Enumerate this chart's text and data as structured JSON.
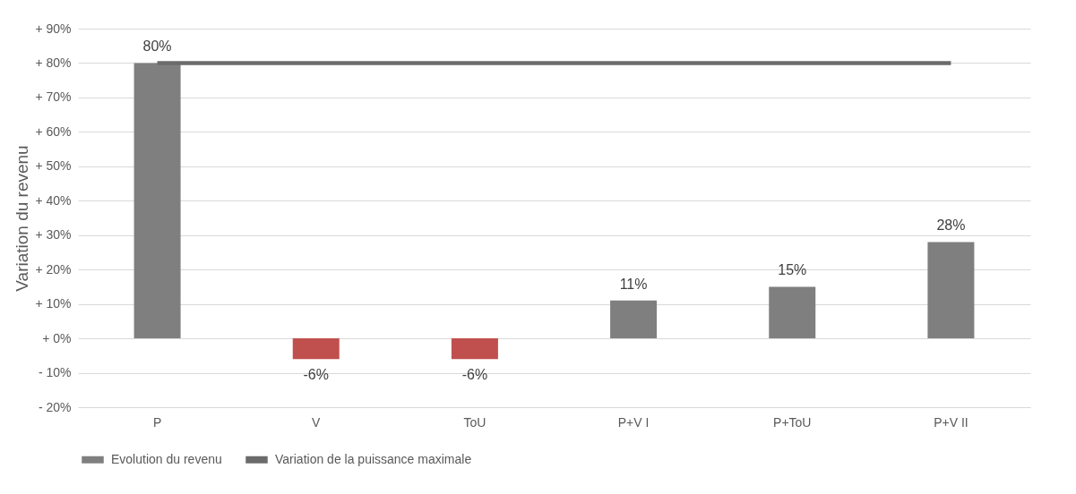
{
  "chart_data": {
    "type": "bar",
    "ylabel": "Variation du revenu",
    "categories": [
      "P",
      "V",
      "ToU",
      "P+V I",
      "P+ToU",
      "P+V II"
    ],
    "series": [
      {
        "name": "Evolution du revenu",
        "color": "#7f7f7f",
        "colors": [
          "#7f7f7f",
          "#c0504d",
          "#c0504d",
          "#7f7f7f",
          "#7f7f7f",
          "#7f7f7f"
        ],
        "values": [
          80,
          -6,
          -6,
          11,
          15,
          28
        ],
        "value_labels": [
          "80%",
          "-6%",
          "-6%",
          "11%",
          "15%",
          "28%"
        ]
      },
      {
        "name": "Variation de la puissance maximale",
        "type": "line",
        "color": "#6b6b6b",
        "values": [
          80,
          80,
          80,
          80,
          80,
          80
        ]
      }
    ],
    "ylim": [
      -20,
      90
    ],
    "yticks": [
      {
        "value": -20,
        "label": "- 20%"
      },
      {
        "value": -10,
        "label": "- 10%"
      },
      {
        "value": 0,
        "label": "+ 0%"
      },
      {
        "value": 10,
        "label": "+ 10%"
      },
      {
        "value": 20,
        "label": "+ 20%"
      },
      {
        "value": 30,
        "label": "+ 30%"
      },
      {
        "value": 40,
        "label": "+ 40%"
      },
      {
        "value": 50,
        "label": "+ 50%"
      },
      {
        "value": 60,
        "label": "+ 60%"
      },
      {
        "value": 70,
        "label": "+ 70%"
      },
      {
        "value": 80,
        "label": "+ 80%"
      },
      {
        "value": 90,
        "label": "+ 90%"
      }
    ],
    "grid": "y",
    "legend": "bottom"
  }
}
